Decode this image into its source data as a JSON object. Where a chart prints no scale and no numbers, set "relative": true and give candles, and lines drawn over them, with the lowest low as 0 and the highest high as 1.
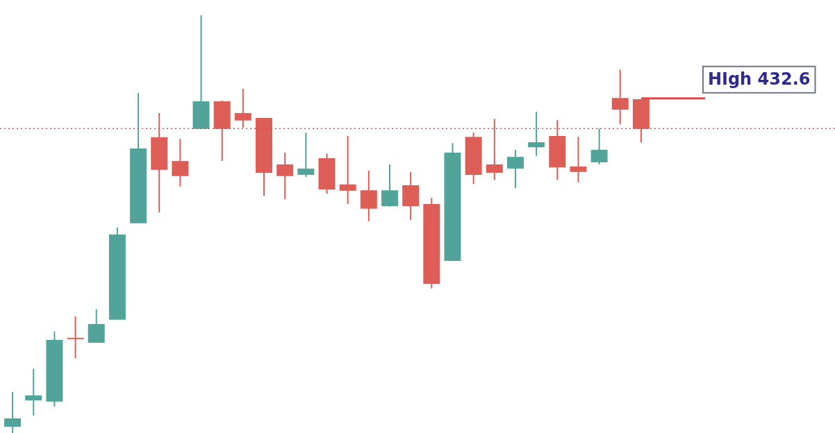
{
  "chart_data": {
    "type": "candlestick",
    "relative": true,
    "categories": [
      null,
      null,
      null,
      null,
      null,
      null,
      null,
      null,
      null,
      null,
      null,
      null,
      null,
      null,
      null,
      null,
      null,
      null,
      null,
      null,
      null,
      null,
      null,
      null,
      null,
      null,
      null,
      null,
      null,
      null,
      null
    ],
    "ohlc": [
      [
        0.015,
        0.098,
        0,
        0.035
      ],
      [
        0.078,
        0.154,
        0.042,
        0.09
      ],
      [
        0.075,
        0.243,
        0.063,
        0.223
      ],
      [
        0.228,
        0.279,
        0.179,
        0.226
      ],
      [
        0.216,
        0.296,
        0.216,
        0.261
      ],
      [
        0.271,
        0.492,
        0.271,
        0.475
      ],
      [
        0.502,
        0.814,
        0.502,
        0.681
      ],
      [
        0.708,
        0.766,
        0.528,
        0.63
      ],
      [
        0.651,
        0.704,
        0.59,
        0.615
      ],
      [
        0.728,
        1,
        0.728,
        0.794
      ],
      [
        0.794,
        0.796,
        0.651,
        0.728
      ],
      [
        0.766,
        0.824,
        0.731,
        0.748
      ],
      [
        0.754,
        0.754,
        0.568,
        0.623
      ],
      [
        0.643,
        0.671,
        0.56,
        0.615
      ],
      [
        0.618,
        0.719,
        0.613,
        0.633
      ],
      [
        0.658,
        0.669,
        0.573,
        0.583
      ],
      [
        0.595,
        0.711,
        0.548,
        0.58
      ],
      [
        0.581,
        0.628,
        0.507,
        0.537
      ],
      [
        0.543,
        0.643,
        0.542,
        0.581
      ],
      [
        0.593,
        0.625,
        0.51,
        0.543
      ],
      [
        0.548,
        0.563,
        0.346,
        0.357
      ],
      [
        0.412,
        0.694,
        0.412,
        0.671
      ],
      [
        0.709,
        0.719,
        0.596,
        0.618
      ],
      [
        0.643,
        0.752,
        0.606,
        0.623
      ],
      [
        0.633,
        0.678,
        0.586,
        0.661
      ],
      [
        0.684,
        0.769,
        0.663,
        0.696
      ],
      [
        0.711,
        0.749,
        0.606,
        0.636
      ],
      [
        0.638,
        0.709,
        0.6,
        0.625
      ],
      [
        0.648,
        0.729,
        0.643,
        0.678
      ],
      [
        0.802,
        0.87,
        0.739,
        0.774
      ],
      [
        0.799,
        0.799,
        0.696,
        0.728
      ]
    ],
    "colors": [
      "#52a49a",
      "#52a49a",
      "#52a49a",
      "#dd5e56",
      "#52a49a",
      "#52a49a",
      "#52a49a",
      "#dd5e56",
      "#dd5e56",
      "#52a49a",
      "#dd5e56",
      "#dd5e56",
      "#dd5e56",
      "#dd5e56",
      "#52a49a",
      "#dd5e56",
      "#dd5e56",
      "#dd5e56",
      "#52a49a",
      "#dd5e56",
      "#dd5e56",
      "#52a49a",
      "#dd5e56",
      "#dd5e56",
      "#52a49a",
      "#52a49a",
      "#dd5e56",
      "#dd5e56",
      "#52a49a",
      "#dd5e56",
      "#dd5e56"
    ],
    "ref_lines": [
      {
        "axis": "y",
        "value": 0.801,
        "label": "HIgh 432.6",
        "color": "#e04848",
        "line_style": "solid"
      },
      {
        "axis": "y",
        "value": 0.729,
        "color": "#e04848",
        "line_style": "dotted"
      }
    ],
    "legend": false
  }
}
